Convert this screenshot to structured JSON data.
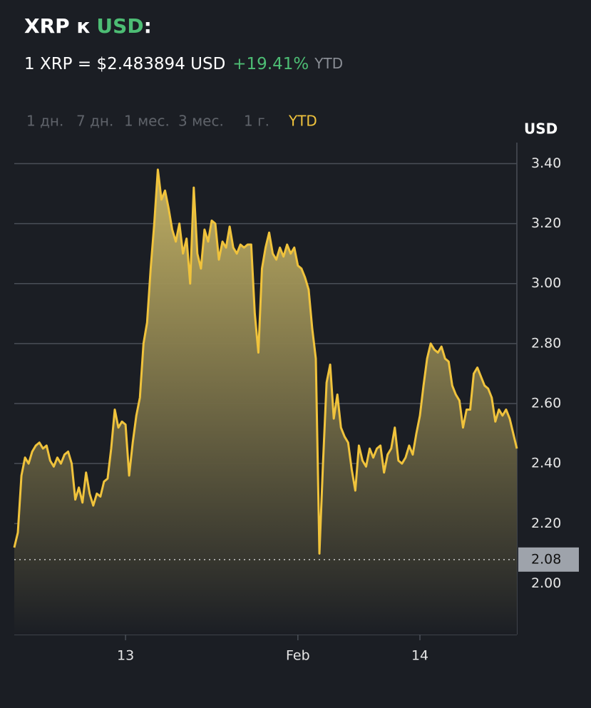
{
  "chart_data": {
    "type": "line",
    "title": "XRP к",
    "title_quote": "USD",
    "title_suffix": ":",
    "rate_text": "1 XRP = $2.483894 USD",
    "change": "+19.41%",
    "change_period": "YTD",
    "ranges": [
      "1 дн.",
      "7 дн.",
      "1 мес.",
      "3 мес.",
      "1 г.",
      "YTD"
    ],
    "active_range": 5,
    "y_axis_label": "USD",
    "color": "#f0c33c",
    "values": [
      2.12,
      2.17,
      2.36,
      2.42,
      2.4,
      2.44,
      2.46,
      2.47,
      2.45,
      2.46,
      2.41,
      2.39,
      2.42,
      2.4,
      2.43,
      2.44,
      2.4,
      2.28,
      2.32,
      2.27,
      2.37,
      2.3,
      2.26,
      2.3,
      2.29,
      2.34,
      2.35,
      2.45,
      2.58,
      2.52,
      2.54,
      2.53,
      2.36,
      2.47,
      2.56,
      2.62,
      2.8,
      2.87,
      3.05,
      3.2,
      3.38,
      3.28,
      3.31,
      3.25,
      3.18,
      3.14,
      3.2,
      3.1,
      3.15,
      3.0,
      3.32,
      3.1,
      3.05,
      3.18,
      3.14,
      3.21,
      3.2,
      3.08,
      3.14,
      3.12,
      3.19,
      3.12,
      3.1,
      3.13,
      3.12,
      3.13,
      3.13,
      2.9,
      2.77,
      3.05,
      3.12,
      3.17,
      3.1,
      3.08,
      3.12,
      3.09,
      3.13,
      3.1,
      3.12,
      3.06,
      3.05,
      3.02,
      2.98,
      2.85,
      2.75,
      2.1,
      2.4,
      2.67,
      2.73,
      2.55,
      2.63,
      2.52,
      2.49,
      2.47,
      2.38,
      2.31,
      2.46,
      2.41,
      2.39,
      2.45,
      2.42,
      2.45,
      2.46,
      2.37,
      2.43,
      2.45,
      2.52,
      2.41,
      2.4,
      2.42,
      2.46,
      2.43,
      2.5,
      2.56,
      2.66,
      2.75,
      2.8,
      2.78,
      2.77,
      2.79,
      2.75,
      2.74,
      2.66,
      2.63,
      2.61,
      2.52,
      2.58,
      2.58,
      2.7,
      2.72,
      2.69,
      2.66,
      2.65,
      2.62,
      2.54,
      2.58,
      2.56,
      2.58,
      2.55,
      2.5,
      2.45
    ],
    "xlim": [
      0,
      140
    ],
    "xticks": [
      {
        "value": 31,
        "label": "13"
      },
      {
        "value": 79,
        "label": "Feb"
      },
      {
        "value": 113,
        "label": "14"
      }
    ],
    "ylim": [
      1.83,
      3.47
    ],
    "yticks": [
      {
        "value": 2,
        "label": "2.00"
      },
      {
        "value": 2.2,
        "label": "2.20"
      },
      {
        "value": 2.4,
        "label": "2.40"
      },
      {
        "value": 2.6,
        "label": "2.60"
      },
      {
        "value": 2.8,
        "label": "2.80"
      },
      {
        "value": 3,
        "label": "3.00"
      },
      {
        "value": 3.2,
        "label": "3.20"
      },
      {
        "value": 3.4,
        "label": "3.40"
      }
    ],
    "grid": true,
    "reference_line": {
      "value": 2.08,
      "label": "2.08"
    }
  }
}
